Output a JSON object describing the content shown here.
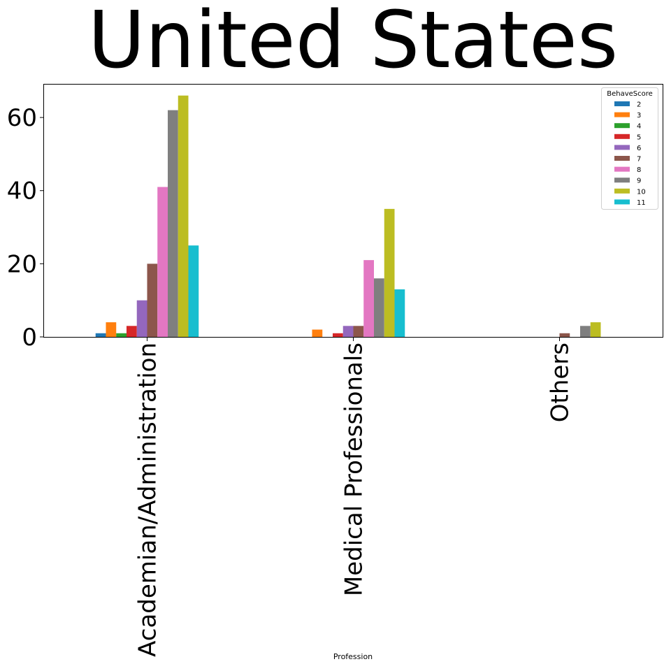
{
  "chart_data": {
    "type": "bar",
    "title": "United States",
    "xlabel": "Profession",
    "ylabel": "",
    "ylim": [
      0,
      69
    ],
    "yticks": [
      0,
      20,
      40,
      60
    ],
    "ytick_labels": [
      "0",
      "20",
      "40",
      "60"
    ],
    "grid": false,
    "categories": [
      "Academian/Administration",
      "Medical Professionals",
      "Others"
    ],
    "legend": {
      "title": "BehaveScore",
      "placement": "upper right"
    },
    "series": [
      {
        "name": "2",
        "color": "#1f77b4",
        "values": [
          1,
          0,
          0
        ]
      },
      {
        "name": "3",
        "color": "#ff7f0e",
        "values": [
          4,
          2,
          0
        ]
      },
      {
        "name": "4",
        "color": "#2ca02c",
        "values": [
          1,
          0,
          0
        ]
      },
      {
        "name": "5",
        "color": "#d62728",
        "values": [
          3,
          1,
          0
        ]
      },
      {
        "name": "6",
        "color": "#9467bd",
        "values": [
          10,
          3,
          0
        ]
      },
      {
        "name": "7",
        "color": "#8c564b",
        "values": [
          20,
          3,
          1
        ]
      },
      {
        "name": "8",
        "color": "#e377c2",
        "values": [
          41,
          21,
          0
        ]
      },
      {
        "name": "9",
        "color": "#7f7f7f",
        "values": [
          62,
          16,
          3
        ]
      },
      {
        "name": "10",
        "color": "#bcbd22",
        "values": [
          66,
          35,
          4
        ]
      },
      {
        "name": "11",
        "color": "#17becf",
        "values": [
          25,
          13,
          0
        ]
      }
    ]
  }
}
